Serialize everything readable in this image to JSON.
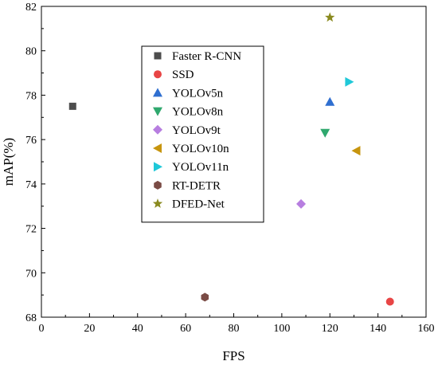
{
  "chart_data": {
    "type": "scatter",
    "xlabel": "FPS",
    "ylabel": "mAP(%)",
    "xlim": [
      0,
      160
    ],
    "ylim": [
      68,
      82
    ],
    "xticks": [
      0,
      20,
      40,
      60,
      80,
      100,
      120,
      140,
      160
    ],
    "yticks": [
      68,
      70,
      72,
      74,
      76,
      78,
      80,
      82
    ],
    "grid": false,
    "legend_position": "upper-left inside",
    "series": [
      {
        "name": "Faster R-CNN",
        "marker": "square",
        "color": "#4d4d4d",
        "x": 13,
        "y": 77.5
      },
      {
        "name": "SSD",
        "marker": "circle",
        "color": "#e84545",
        "x": 145,
        "y": 68.7
      },
      {
        "name": "YOLOv5n",
        "marker": "triangle-up",
        "color": "#2f6fd0",
        "x": 120,
        "y": 77.7
      },
      {
        "name": "YOLOv8n",
        "marker": "triangle-down",
        "color": "#2fa86e",
        "x": 118,
        "y": 76.3
      },
      {
        "name": "YOLOv9t",
        "marker": "diamond",
        "color": "#b77ee0",
        "x": 108,
        "y": 73.1
      },
      {
        "name": "YOLOv10n",
        "marker": "triangle-left",
        "color": "#c7950e",
        "x": 131,
        "y": 75.5
      },
      {
        "name": "YOLOv11n",
        "marker": "triangle-right",
        "color": "#1fc8d8",
        "x": 128,
        "y": 78.6
      },
      {
        "name": "RT-DETR",
        "marker": "hexagon",
        "color": "#7a4b45",
        "x": 68,
        "y": 68.9
      },
      {
        "name": "DFED-Net",
        "marker": "star",
        "color": "#8a8a1f",
        "x": 120,
        "y": 81.5
      }
    ]
  }
}
